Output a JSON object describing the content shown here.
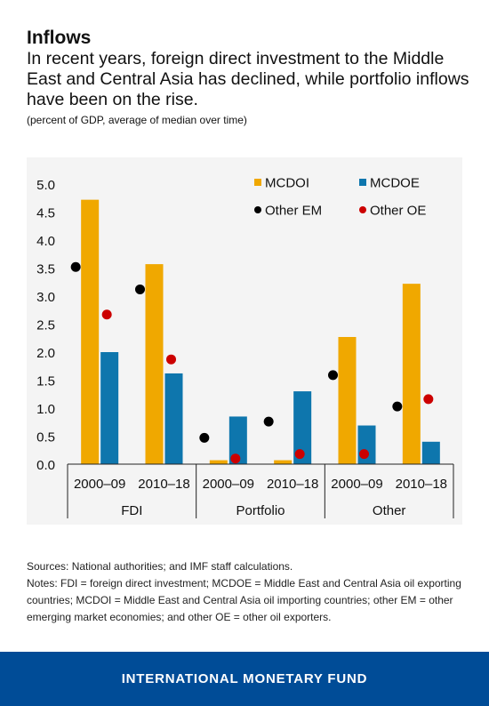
{
  "header": {
    "title": "Inflows",
    "subtitle": "In recent years, foreign direct investment to the Middle East and Central Asia has declined, while portfolio inflows have been on the rise.",
    "note": "(percent of GDP, average of median over time)"
  },
  "chart_data": {
    "type": "bar",
    "groups": [
      {
        "label": "FDI",
        "periods": [
          "2000–09",
          "2010–18"
        ]
      },
      {
        "label": "Portfolio",
        "periods": [
          "2000–09",
          "2010–18"
        ]
      },
      {
        "label": "Other",
        "periods": [
          "2000–09",
          "2010–18"
        ]
      }
    ],
    "categories": [
      "FDI 2000–09",
      "FDI 2010–18",
      "Portfolio 2000–09",
      "Portfolio 2010–18",
      "Other 2000–09",
      "Other 2010–18"
    ],
    "ylim": [
      0,
      5.0
    ],
    "yticks": [
      "0.0",
      "0.5",
      "1.0",
      "1.5",
      "2.0",
      "2.5",
      "3.0",
      "3.5",
      "4.0",
      "4.5",
      "5.0"
    ],
    "bar_series": [
      {
        "name": "MCDOI",
        "color": "#f0a800",
        "values": [
          4.72,
          3.57,
          0.07,
          0.07,
          2.27,
          3.22
        ]
      },
      {
        "name": "MCDOE",
        "color": "#0e76ad",
        "values": [
          2.0,
          1.62,
          0.85,
          1.3,
          0.69,
          0.4
        ]
      }
    ],
    "dot_series": [
      {
        "name": "Other EM",
        "color": "#000000",
        "values": [
          3.52,
          3.12,
          0.47,
          0.76,
          1.59,
          1.03
        ]
      },
      {
        "name": "Other OE",
        "color": "#cc0000",
        "values": [
          2.67,
          1.87,
          0.1,
          0.18,
          0.18,
          1.16
        ]
      }
    ],
    "legend_position": "top-right",
    "grid": false
  },
  "footnotes": {
    "sources": "Sources: National authorities; and IMF staff calculations.",
    "notes": "Notes: FDI = foreign direct investment; MCDOE = Middle East and Central Asia  oil exporting countries; MCDOI = Middle East and Central Asia oil importing countries; other EM = other emerging market economies; and other OE = other oil exporters."
  },
  "footer": {
    "org": "INTERNATIONAL MONETARY FUND"
  }
}
